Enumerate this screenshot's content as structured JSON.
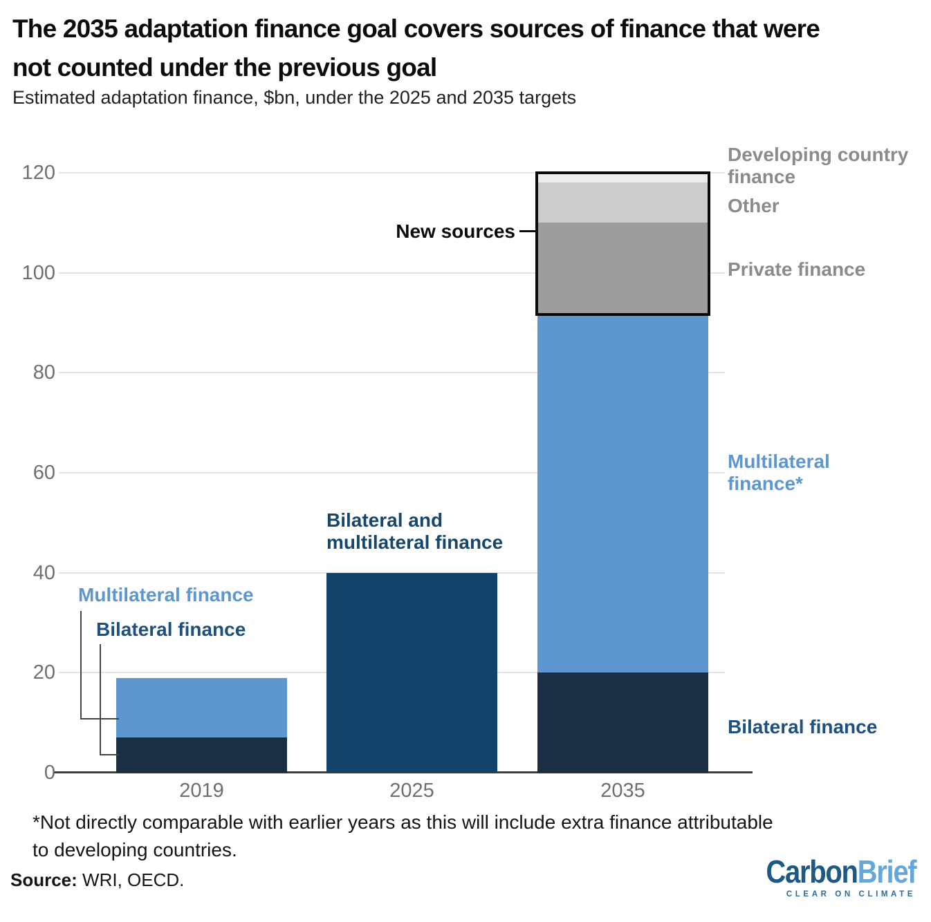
{
  "header": {
    "title_line1": "The 2035 adaptation finance goal covers sources of finance that were",
    "title_line2": "not counted under the previous goal",
    "subtitle": "Estimated adaptation finance, $bn, under the 2025 and 2035 targets"
  },
  "chart_data": {
    "type": "bar",
    "stacked": true,
    "title": "The 2035 adaptation finance goal covers sources of finance that were not counted under the previous goal",
    "subtitle": "Estimated adaptation finance, $bn, under the 2025 and 2035 targets",
    "unit": "$bn",
    "categories": [
      "2019",
      "2025",
      "2035"
    ],
    "ylim": [
      0,
      120
    ],
    "yticks": [
      0,
      20,
      40,
      60,
      80,
      100,
      120
    ],
    "grid": "horizontal",
    "colors": {
      "bilateral": "#1a2e44",
      "combined": "#12436b",
      "multilateral": "#5e97d0",
      "private": "#9d9d9d",
      "other": "#cccccc",
      "developing": "#ececec"
    },
    "bars": [
      {
        "category": "2019",
        "segments": [
          {
            "label": "Bilateral finance",
            "value": 7,
            "color_key": "bilateral"
          },
          {
            "label": "Multilateral finance",
            "value": 12,
            "color_key": "multilateral"
          }
        ]
      },
      {
        "category": "2025",
        "segments": [
          {
            "label": "Bilateral and multilateral finance",
            "value": 40,
            "color_key": "combined"
          }
        ]
      },
      {
        "category": "2035",
        "segments": [
          {
            "label": "Bilateral finance",
            "value": 20,
            "color_key": "bilateral"
          },
          {
            "label": "Multilateral finance*",
            "value": 72,
            "color_key": "multilateral"
          },
          {
            "label": "Private finance",
            "value": 18,
            "color_key": "private"
          },
          {
            "label": "Other",
            "value": 8,
            "color_key": "other"
          },
          {
            "label": "Developing country finance",
            "value": 2,
            "color_key": "developing"
          }
        ]
      }
    ],
    "new_sources_box": {
      "category_index": 2,
      "from_value": 92,
      "to_value": 120
    }
  },
  "annotations": {
    "new_sources": "New sources",
    "developing": "Developing country finance",
    "other": "Other",
    "private": "Private finance",
    "multilateral_right": "Multilateral finance*",
    "bilateral_right": "Bilateral finance",
    "multilateral_left": "Multilateral finance",
    "bilateral_left": "Bilateral finance",
    "combined_2025": "Bilateral and multilateral finance"
  },
  "footnote": "*Not directly comparable with earlier years as this will include extra finance attributable to developing countries.",
  "source": {
    "label": "Source:",
    "text": "WRI, OECD."
  },
  "logo": {
    "part1": "Carbon",
    "part2": "Brief",
    "tagline": "CLEAR ON CLIMATE"
  }
}
